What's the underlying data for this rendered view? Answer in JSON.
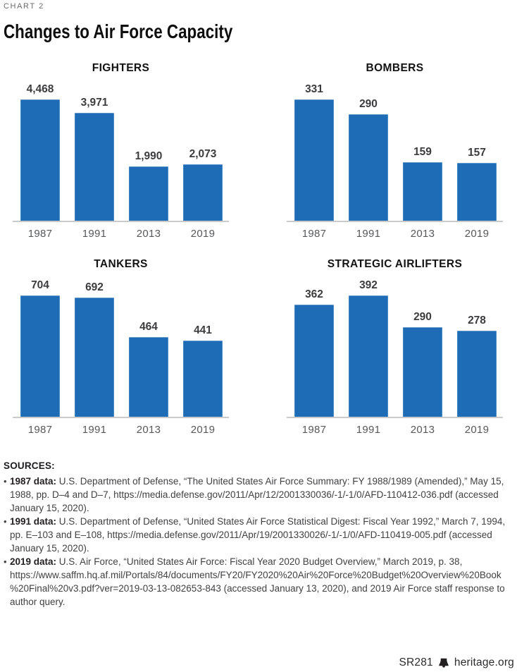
{
  "page": {
    "kicker": "CHART 2",
    "title": "Changes to Air Force Capacity"
  },
  "colors": {
    "bar_blue": "#1E6CB5",
    "axis_line": "#C9CACB",
    "value_label": "#3C3C3E",
    "year_label": "#57585A",
    "kicker_gray": "#6B6C6F",
    "body_text": "#414042"
  },
  "chart_data": [
    {
      "type": "bar",
      "title": "FIGHTERS",
      "categories": [
        "1987",
        "1991",
        "2013",
        "2019"
      ],
      "values": [
        4468,
        3971,
        1990,
        2073
      ],
      "value_labels": [
        "4,468",
        "3,971",
        "1,990",
        "2,073"
      ],
      "xlabel": "",
      "ylabel": "",
      "ylim": [
        0,
        4468
      ],
      "grid": false,
      "legend": "none",
      "value_label_position": "above-bars"
    },
    {
      "type": "bar",
      "title": "BOMBERS",
      "categories": [
        "1987",
        "1991",
        "2013",
        "2019"
      ],
      "values": [
        331,
        290,
        159,
        157
      ],
      "value_labels": [
        "331",
        "290",
        "159",
        "157"
      ],
      "xlabel": "",
      "ylabel": "",
      "ylim": [
        0,
        331
      ],
      "grid": false,
      "legend": "none",
      "value_label_position": "above-bars"
    },
    {
      "type": "bar",
      "title": "TANKERS",
      "categories": [
        "1987",
        "1991",
        "2013",
        "2019"
      ],
      "values": [
        704,
        692,
        464,
        441
      ],
      "value_labels": [
        "704",
        "692",
        "464",
        "441"
      ],
      "xlabel": "",
      "ylabel": "",
      "ylim": [
        0,
        704
      ],
      "grid": false,
      "legend": "none",
      "value_label_position": "above-bars"
    },
    {
      "type": "bar",
      "title": "STRATEGIC AIRLIFTERS",
      "categories": [
        "1987",
        "1991",
        "2013",
        "2019"
      ],
      "values": [
        362,
        392,
        290,
        278
      ],
      "value_labels": [
        "362",
        "392",
        "290",
        "278"
      ],
      "xlabel": "",
      "ylabel": "",
      "ylim": [
        0,
        392
      ],
      "grid": false,
      "legend": "none",
      "value_label_position": "above-bars"
    }
  ],
  "sources": {
    "heading": "SOURCES:",
    "items": [
      {
        "label": "1987 data:",
        "text": " U.S. Department of Defense, “The United States Air Force Summary: FY 1988/1989 (Amended),” May 15, 1988, pp. D–4 and D–7, https://media.defense.gov/2011/Apr/12/2001330036/-1/-1/0/AFD-110412-036.pdf (accessed January 15, 2020)."
      },
      {
        "label": "1991 data:",
        "text": " U.S. Department of Defense, “United States Air Force Statistical Digest: Fiscal Year 1992,” March 7, 1994, pp. E–103 and E–108, https://media.defense.gov/2011/Apr/19/2001330026/-1/-1/0/AFD-110419-005.pdf (accessed January 15, 2020)."
      },
      {
        "label": "2019 data:",
        "text": " U.S. Air Force, “United States Air Force: Fiscal Year 2020 Budget Overview,” March 2019, p. 38, https://www.saffm.hq.af.mil/Portals/84/documents/FY20/FY2020%20Air%20Force%20Budget%20Overview%20Book%20Final%20v3.pdf?ver=2019-03-13-082653-843 (accessed January 13, 2020), and 2019 Air Force staff response to author query."
      }
    ]
  },
  "footer": {
    "report_id": "SR281",
    "site": "heritage.org"
  }
}
